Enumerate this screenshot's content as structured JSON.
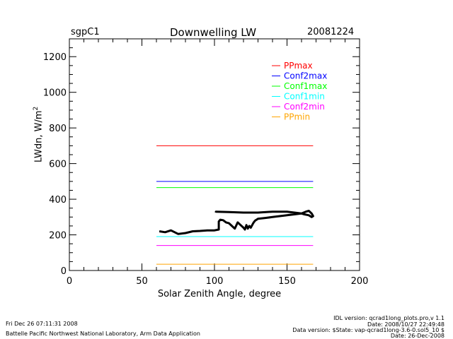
{
  "header": {
    "site": "sgpC1",
    "title": "Downwelling LW",
    "date": "20081224"
  },
  "footer": {
    "timestamp": "Fri Dec 26 07:11:31 2008",
    "lab": "Battelle Pacific Northwest National Laboratory, Arm Data Application",
    "idl_version": "IDL version: qcrad1long_plots.pro,v 1.1",
    "idl_date": "Date: 2008/10/27 22:49:48",
    "data_version": "Data version: $State: vap-qcrad1long-3.6-0.sol5_10 $",
    "data_date": "Date: 26-Dec-2008"
  },
  "chart_data": {
    "type": "line",
    "xlabel": "Solar Zenith Angle, degree",
    "ylabel": "LWdn, W/m",
    "ylabel_sup": "2",
    "xlim": [
      0,
      200
    ],
    "ylim": [
      0,
      1300
    ],
    "xticks": [
      0,
      50,
      100,
      150,
      200
    ],
    "yticks": [
      0,
      200,
      400,
      600,
      800,
      1000,
      1200
    ],
    "legend_position": "top-right",
    "legend": [
      {
        "name": "PPmax",
        "color": "#ff0000"
      },
      {
        "name": "Conf2max",
        "color": "#0000ff"
      },
      {
        "name": "Conf1max",
        "color": "#00ff00"
      },
      {
        "name": "Conf1min",
        "color": "#00ffff"
      },
      {
        "name": "Conf2min",
        "color": "#ff00ff"
      },
      {
        "name": "PPmin",
        "color": "#ffa500"
      }
    ],
    "limit_lines": [
      {
        "name": "PPmax",
        "color": "#ff0000",
        "x": [
          60,
          168
        ],
        "y": 700
      },
      {
        "name": "Conf2max",
        "color": "#0000ff",
        "x": [
          60,
          168
        ],
        "y": 500
      },
      {
        "name": "Conf1max",
        "color": "#00ff00",
        "x": [
          60,
          168
        ],
        "y": 465
      },
      {
        "name": "Conf1min",
        "color": "#00ffff",
        "x": [
          60,
          168
        ],
        "y": 190
      },
      {
        "name": "Conf2min",
        "color": "#ff00ff",
        "x": [
          60,
          168
        ],
        "y": 140
      },
      {
        "name": "PPmin",
        "color": "#ffa500",
        "x": [
          60,
          168
        ],
        "y": 35
      }
    ],
    "series": [
      {
        "color": "#000000",
        "x": [
          62,
          66,
          70,
          75,
          80,
          85,
          90,
          95,
          100,
          103,
          103,
          104,
          106,
          108,
          110,
          112,
          114,
          116,
          118,
          120,
          121,
          122,
          123,
          124,
          125,
          126,
          127,
          128,
          130,
          135,
          140,
          145,
          150,
          155,
          160,
          163,
          165,
          167,
          168,
          167,
          165,
          162,
          160,
          155,
          150,
          140,
          130,
          120,
          110,
          101,
          101
        ],
        "y": [
          220,
          215,
          225,
          205,
          210,
          220,
          222,
          225,
          225,
          230,
          275,
          285,
          282,
          270,
          265,
          250,
          235,
          270,
          255,
          240,
          230,
          255,
          235,
          250,
          240,
          255,
          270,
          280,
          290,
          295,
          300,
          305,
          310,
          315,
          320,
          330,
          335,
          320,
          305,
          300,
          310,
          315,
          320,
          325,
          330,
          330,
          325,
          325,
          328,
          330,
          325
        ]
      }
    ]
  }
}
